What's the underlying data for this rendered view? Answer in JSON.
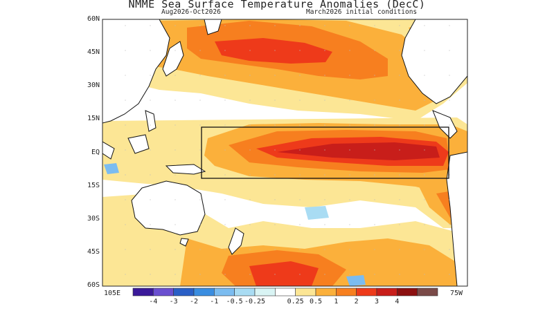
{
  "title": "NMME Sea Surface Temperature Anomalies (DecC)",
  "subtitle_left": "Aug2026-Oct2026",
  "subtitle_right": "March2026 initial conditions",
  "lat_labels": [
    "60N",
    "45N",
    "30N",
    "15N",
    "EQ",
    "15S",
    "30S",
    "45S",
    "60S"
  ],
  "lon_labels": {
    "west": "105E",
    "east": "75W"
  },
  "colorbar": {
    "labels": [
      "-4",
      "-3",
      "-2",
      "-1",
      "-0.5",
      "-0.25",
      "0.25",
      "0.5",
      "1",
      "2",
      "3",
      "4"
    ],
    "colors": [
      "#3b1a9a",
      "#6a4fd0",
      "#2a5fc6",
      "#3a8de0",
      "#7bbcf0",
      "#a9dcf3",
      "#d9f4f4",
      "#ffffff",
      "#fce695",
      "#fbb03b",
      "#f77f1f",
      "#ee3a1a",
      "#c81e1a",
      "#8c1010",
      "#7a4a48"
    ]
  },
  "regions": {
    "nino_box": "Niño region box (170E–80W, 10S–10N)"
  }
}
